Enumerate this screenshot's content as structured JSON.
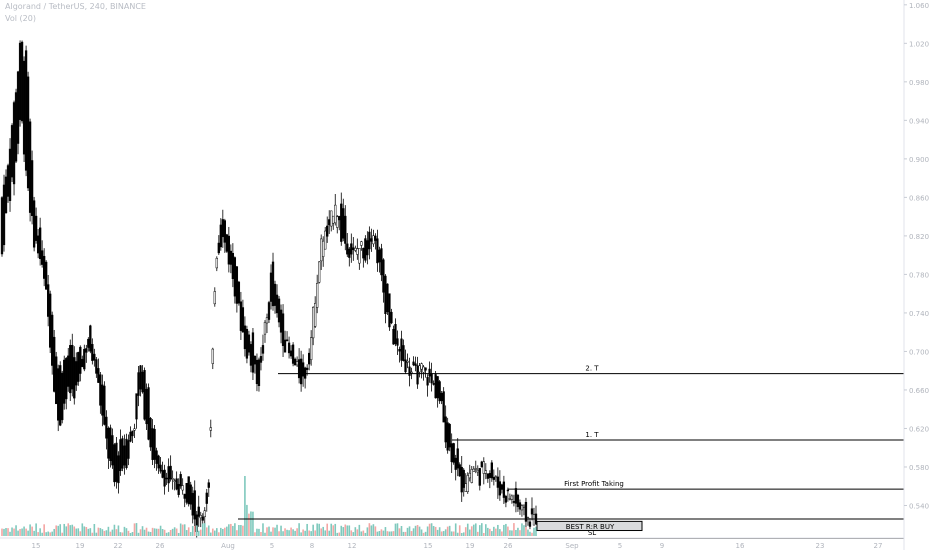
{
  "header": {
    "title": "Algorand / TetherUS, 240, BINANCE",
    "volume_indicator": "Vol (20)"
  },
  "chart_data": {
    "type": "candlestick",
    "instrument": "Algorand / TetherUS",
    "timeframe": "240",
    "exchange": "BINANCE",
    "y_range": [
      0.5,
      1.065
    ],
    "y_ticks": [
      "1.060",
      "1.020",
      "0.980",
      "0.940",
      "0.900",
      "0.860",
      "0.820",
      "0.780",
      "0.740",
      "0.700",
      "0.660",
      "0.620",
      "0.580",
      "0.540"
    ],
    "x_ticks": [
      "15",
      "19",
      "22",
      "26",
      "Aug",
      "5",
      "8",
      "12",
      "15",
      "19",
      "26",
      "Sep",
      "5",
      "9",
      "16",
      "23",
      "27"
    ],
    "price_path": [
      [
        0.86,
        0.8
      ],
      [
        0.9,
        0.86
      ],
      [
        0.96,
        0.88
      ],
      [
        1.02,
        0.95
      ],
      [
        1.0,
        0.88
      ],
      [
        0.86,
        0.82
      ],
      [
        0.82,
        0.8
      ],
      [
        0.8,
        0.76
      ],
      [
        0.74,
        0.69
      ],
      [
        0.68,
        0.62
      ],
      [
        0.69,
        0.65
      ],
      [
        0.7,
        0.66
      ],
      [
        0.69,
        0.66
      ],
      [
        0.7,
        0.69
      ],
      [
        0.72,
        0.7
      ],
      [
        0.7,
        0.68
      ],
      [
        0.67,
        0.63
      ],
      [
        0.62,
        0.59
      ],
      [
        0.6,
        0.56
      ],
      [
        0.6,
        0.58
      ],
      [
        0.61,
        0.59
      ],
      [
        0.62,
        0.62
      ],
      [
        0.69,
        0.66
      ],
      [
        0.67,
        0.63
      ],
      [
        0.62,
        0.59
      ],
      [
        0.59,
        0.57
      ],
      [
        0.58,
        0.57
      ],
      [
        0.57,
        0.56
      ],
      [
        0.565,
        0.56
      ],
      [
        0.56,
        0.555
      ],
      [
        0.56,
        0.55
      ],
      [
        0.54,
        0.52
      ],
      [
        0.53,
        0.53
      ],
      [
        0.56,
        0.56
      ],
      [
        0.78,
        0.8
      ],
      [
        0.85,
        0.82
      ],
      [
        0.82,
        0.8
      ],
      [
        0.79,
        0.77
      ],
      [
        0.76,
        0.73
      ],
      [
        0.72,
        0.7
      ],
      [
        0.71,
        0.68
      ],
      [
        0.68,
        0.67
      ],
      [
        0.72,
        0.73
      ],
      [
        0.79,
        0.75
      ],
      [
        0.76,
        0.73
      ],
      [
        0.72,
        0.71
      ],
      [
        0.71,
        0.69
      ],
      [
        0.69,
        0.68
      ],
      [
        0.68,
        0.67
      ],
      [
        0.69,
        0.7
      ],
      [
        0.73,
        0.77
      ],
      [
        0.8,
        0.82
      ],
      [
        0.83,
        0.82
      ],
      [
        0.83,
        0.86
      ],
      [
        0.85,
        0.82
      ],
      [
        0.82,
        0.81
      ],
      [
        0.8,
        0.8
      ],
      [
        0.8,
        0.81
      ],
      [
        0.81,
        0.8
      ],
      [
        0.82,
        0.83
      ],
      [
        0.81,
        0.79
      ],
      [
        0.78,
        0.75
      ],
      [
        0.74,
        0.72
      ],
      [
        0.71,
        0.7
      ],
      [
        0.7,
        0.69
      ],
      [
        0.69,
        0.68
      ],
      [
        0.68,
        0.675
      ],
      [
        0.675,
        0.68
      ],
      [
        0.68,
        0.67
      ],
      [
        0.67,
        0.66
      ],
      [
        0.66,
        0.64
      ],
      [
        0.63,
        0.6
      ],
      [
        0.6,
        0.59
      ],
      [
        0.58,
        0.56
      ],
      [
        0.56,
        0.57
      ],
      [
        0.57,
        0.58
      ],
      [
        0.58,
        0.57
      ],
      [
        0.575,
        0.58
      ],
      [
        0.58,
        0.57
      ],
      [
        0.57,
        0.56
      ],
      [
        0.56,
        0.55
      ],
      [
        0.545,
        0.55
      ],
      [
        0.55,
        0.54
      ],
      [
        0.54,
        0.53
      ],
      [
        0.53,
        0.525
      ],
      [
        0.525,
        0.53
      ]
    ],
    "levels": [
      {
        "label": "2. T",
        "value": 0.677,
        "price_tag": "0.677"
      },
      {
        "label": "1. T",
        "value": 0.608,
        "price_tag": "0.608"
      },
      {
        "label": "First Profit Taking",
        "value": 0.557,
        "price_tag": "0.557"
      },
      {
        "label": "",
        "value": 0.526,
        "price_tag": "0.526"
      },
      {
        "label": "SL",
        "value": 0.506,
        "price_tag": "0.506"
      }
    ],
    "buy_zone": {
      "label": "BEST R:R BUY",
      "high": 0.5235,
      "low": 0.514
    },
    "current_price": {
      "value": "0.521",
      "countdown": "38:47"
    },
    "colors": {
      "candle": "#000000",
      "level_line": "#000000",
      "zone_fill": "#d9dadc",
      "volume_up": "#7fc9bd",
      "volume_down": "#f4a5a3",
      "axis_text": "#b0b4bc",
      "grid_divider": "#e0e3eb"
    }
  }
}
